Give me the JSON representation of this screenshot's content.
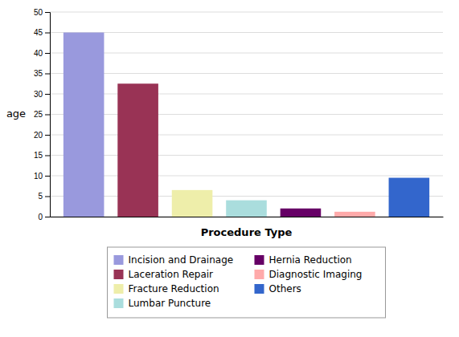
{
  "chart_data": {
    "type": "bar",
    "categories": [
      "Incision and Drainage",
      "Laceration Repair",
      "Fracture Reduction",
      "Lumbar Puncture",
      "Hernia Reduction",
      "Diagnostic Imaging",
      "Others"
    ],
    "values": [
      45,
      32.5,
      6.5,
      4.0,
      2.0,
      1.2,
      9.5
    ],
    "colors": [
      "#9999dd",
      "#993355",
      "#eeeeaa",
      "#aadddd",
      "#660066",
      "#ffaaaa",
      "#3366cc"
    ],
    "xlabel": "Procedure Type",
    "ylabel": "age",
    "ylim": [
      0,
      50
    ],
    "yticks": [
      0,
      5,
      10,
      15,
      20,
      25,
      30,
      35,
      40,
      45,
      50
    ],
    "grid": true,
    "legend": "bottom",
    "tick_labels": "y"
  }
}
